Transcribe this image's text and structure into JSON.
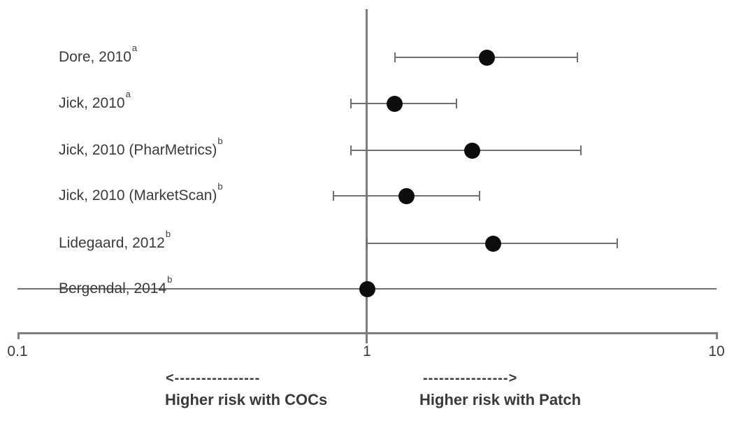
{
  "chart_data": {
    "type": "scatter",
    "variant": "forest-plot",
    "title": "",
    "x_axis": {
      "scale": "log10",
      "xlim": [
        0.1,
        10
      ],
      "ticks": [
        {
          "value": 0.1,
          "label": "0.1"
        },
        {
          "value": 1,
          "label": "1"
        },
        {
          "value": 10,
          "label": "10"
        }
      ],
      "reference_line_at": 1,
      "grid": false
    },
    "studies": [
      {
        "label": "Dore, 2010",
        "superscript": "a",
        "estimate": 2.2,
        "ci_low": 1.2,
        "ci_high": 4.0,
        "ci_spans_full_axis": false
      },
      {
        "label": "Jick, 2010",
        "superscript": "a",
        "estimate": 1.2,
        "ci_low": 0.9,
        "ci_high": 1.8,
        "ci_spans_full_axis": false
      },
      {
        "label": "Jick, 2010 (PharMetrics)",
        "superscript": "b",
        "estimate": 2.0,
        "ci_low": 0.9,
        "ci_high": 4.1,
        "ci_spans_full_axis": false
      },
      {
        "label": "Jick, 2010 (MarketScan)",
        "superscript": "b",
        "estimate": 1.3,
        "ci_low": 0.8,
        "ci_high": 2.1,
        "ci_spans_full_axis": false
      },
      {
        "label": "Lidegaard, 2012",
        "superscript": "b",
        "estimate": 2.3,
        "ci_low": 1.0,
        "ci_high": 5.2,
        "ci_spans_full_axis": false
      },
      {
        "label": "Bergendal, 2014",
        "superscript": "b",
        "estimate": 1.0,
        "ci_low": 0.1,
        "ci_high": 10,
        "ci_spans_full_axis": true
      }
    ],
    "annotations": {
      "left_arrow": "<----------------",
      "left_label": "Higher risk with COCs",
      "right_arrow": "---------------->",
      "right_label": "Higher risk with Patch"
    },
    "legend": null,
    "colors": {
      "marker": "#0d0d0d",
      "line": "#6f6f6f",
      "axis": "#7d7d7d",
      "text": "#3a3a3a"
    }
  }
}
